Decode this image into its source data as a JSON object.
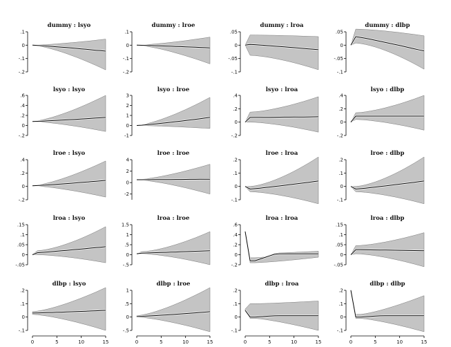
{
  "chart_data": [
    {
      "type": "area",
      "title": "dummy : lsyo",
      "ylim": [
        -0.2,
        0.1
      ],
      "yticks": [
        {
          "v": 0.1,
          "t": ".1"
        },
        {
          "v": 0,
          "t": "0"
        },
        {
          "v": -0.1,
          "t": "-.1"
        },
        {
          "v": -0.2,
          "t": "-.2"
        }
      ],
      "shape": "fan",
      "start": 0,
      "mid_end": -0.045,
      "band_peak": 0,
      "band_peak_lo": 0,
      "up_end": 0.045,
      "lo_end": -0.185
    },
    {
      "type": "area",
      "title": "dummy : lroe",
      "ylim": [
        -0.2,
        0.1
      ],
      "yticks": [
        {
          "v": 0.1,
          "t": ".1"
        },
        {
          "v": 0,
          "t": "0"
        },
        {
          "v": -0.1,
          "t": "-.1"
        },
        {
          "v": -0.2,
          "t": "-.2"
        }
      ],
      "shape": "fan",
      "start": 0,
      "mid_end": -0.02,
      "band_peak": 0,
      "band_peak_lo": 0,
      "up_end": 0.06,
      "lo_end": -0.14
    },
    {
      "type": "area",
      "title": "dummy : lroa",
      "ylim": [
        -0.1,
        0.05
      ],
      "yticks": [
        {
          "v": 0.05,
          "t": ".05"
        },
        {
          "v": 0,
          "t": "0"
        },
        {
          "v": -0.05,
          "t": "-.05"
        },
        {
          "v": -0.1,
          "t": "-.1"
        }
      ],
      "shape": "spike",
      "start": 0,
      "peak": 0.003,
      "mid_end": -0.017,
      "band_peak": 0.038,
      "band_peak_lo": -0.038,
      "up_end": 0.032,
      "lo_end": -0.092
    },
    {
      "type": "area",
      "title": "dummy : dlbp",
      "ylim": [
        -0.1,
        0.05
      ],
      "yticks": [
        {
          "v": 0.05,
          "t": ".05"
        },
        {
          "v": 0,
          "t": "0"
        },
        {
          "v": -0.05,
          "t": "-.05"
        },
        {
          "v": -0.1,
          "t": "-.1"
        }
      ],
      "shape": "spike",
      "start": 0,
      "peak": 0.032,
      "mid_end": -0.022,
      "band_peak": 0.06,
      "band_peak_lo": 0.008,
      "up_end": 0.035,
      "lo_end": -0.09
    },
    {
      "type": "area",
      "title": "lsyo : lsyo",
      "ylim": [
        -0.2,
        0.6
      ],
      "yticks": [
        {
          "v": 0.6,
          "t": ".6"
        },
        {
          "v": 0.4,
          "t": ".4"
        },
        {
          "v": 0.2,
          "t": ".2"
        },
        {
          "v": 0,
          "t": "0"
        },
        {
          "v": -0.2,
          "t": "-.2"
        }
      ],
      "shape": "fan",
      "start": 0.08,
      "mid_end": 0.16,
      "band_peak": 0.08,
      "band_peak_lo": 0.08,
      "up_end": 0.6,
      "lo_end": -0.12
    },
    {
      "type": "area",
      "title": "lsyo : lroe",
      "ylim": [
        -1,
        3
      ],
      "yticks": [
        {
          "v": 3,
          "t": "3"
        },
        {
          "v": 2,
          "t": "2"
        },
        {
          "v": 1,
          "t": "1"
        },
        {
          "v": 0,
          "t": "0"
        },
        {
          "v": -1,
          "t": "-1"
        }
      ],
      "shape": "fan",
      "start": 0,
      "mid_end": 0.8,
      "band_peak": 0,
      "band_peak_lo": 0,
      "up_end": 2.8,
      "lo_end": -0.3
    },
    {
      "type": "area",
      "title": "lsyo : lroa",
      "ylim": [
        -0.2,
        0.4
      ],
      "yticks": [
        {
          "v": 0.4,
          "t": ".4"
        },
        {
          "v": 0.2,
          "t": ".2"
        },
        {
          "v": 0,
          "t": "0"
        },
        {
          "v": -0.2,
          "t": "-.2"
        }
      ],
      "shape": "spike",
      "start": 0,
      "peak": 0.07,
      "mid_end": 0.08,
      "band_peak": 0.15,
      "band_peak_lo": 0.0,
      "up_end": 0.38,
      "lo_end": -0.15
    },
    {
      "type": "area",
      "title": "lsyo : dlbp",
      "ylim": [
        -0.2,
        0.4
      ],
      "yticks": [
        {
          "v": 0.4,
          "t": ".4"
        },
        {
          "v": 0.2,
          "t": ".2"
        },
        {
          "v": 0,
          "t": "0"
        },
        {
          "v": -0.2,
          "t": "-.2"
        }
      ],
      "shape": "spike",
      "start": 0,
      "peak": 0.09,
      "mid_end": 0.09,
      "band_peak": 0.14,
      "band_peak_lo": 0.04,
      "up_end": 0.4,
      "lo_end": -0.12
    },
    {
      "type": "area",
      "title": "lroe : lsyo",
      "ylim": [
        -0.2,
        0.4
      ],
      "yticks": [
        {
          "v": 0.4,
          "t": ".4"
        },
        {
          "v": 0.2,
          "t": ".2"
        },
        {
          "v": 0,
          "t": "0"
        },
        {
          "v": -0.2,
          "t": "-.2"
        }
      ],
      "shape": "fan",
      "start": 0.01,
      "mid_end": 0.09,
      "band_peak": 0.01,
      "band_peak_lo": 0.01,
      "up_end": 0.38,
      "lo_end": -0.16
    },
    {
      "type": "area",
      "title": "lroe : lroe",
      "ylim": [
        -3,
        4
      ],
      "yticks": [
        {
          "v": 4,
          "t": "4"
        },
        {
          "v": 2,
          "t": "2"
        },
        {
          "v": 0,
          "t": "0"
        },
        {
          "v": -2,
          "t": "-2"
        }
      ],
      "shape": "fan",
      "start": 0.5,
      "mid_end": 0.6,
      "band_peak": 0.5,
      "band_peak_lo": 0.5,
      "up_end": 3.2,
      "lo_end": -2.0
    },
    {
      "type": "area",
      "title": "lroe : lroa",
      "ylim": [
        -0.1,
        0.2
      ],
      "yticks": [
        {
          "v": 0.2,
          "t": ".2"
        },
        {
          "v": 0.1,
          "t": ".1"
        },
        {
          "v": 0,
          "t": "0"
        },
        {
          "v": -0.1,
          "t": "-.1"
        }
      ],
      "shape": "spike",
      "start": 0,
      "peak": -0.02,
      "mid_end": 0.04,
      "band_peak": 0.0,
      "band_peak_lo": -0.04,
      "up_end": 0.22,
      "lo_end": -0.13
    },
    {
      "type": "area",
      "title": "lroe : dlbp",
      "ylim": [
        -0.1,
        0.2
      ],
      "yticks": [
        {
          "v": 0.2,
          "t": ".2"
        },
        {
          "v": 0.1,
          "t": ".1"
        },
        {
          "v": 0,
          "t": "0"
        },
        {
          "v": -0.1,
          "t": "-.1"
        }
      ],
      "shape": "spike",
      "start": 0,
      "peak": -0.02,
      "mid_end": 0.04,
      "band_peak": 0.0,
      "band_peak_lo": -0.04,
      "up_end": 0.22,
      "lo_end": -0.13
    },
    {
      "type": "area",
      "title": "lroa : lsyo",
      "ylim": [
        -0.05,
        0.15
      ],
      "yticks": [
        {
          "v": 0.15,
          "t": ".15"
        },
        {
          "v": 0.1,
          "t": ".1"
        },
        {
          "v": 0.05,
          "t": ".05"
        },
        {
          "v": 0,
          "t": "0"
        },
        {
          "v": -0.05,
          "t": "-.05"
        }
      ],
      "shape": "spike",
      "start": 0,
      "peak": 0.01,
      "mid_end": 0.04,
      "band_peak": 0.02,
      "band_peak_lo": 0.0,
      "up_end": 0.14,
      "lo_end": -0.04
    },
    {
      "type": "area",
      "title": "lroa : lroe",
      "ylim": [
        -0.5,
        1.5
      ],
      "yticks": [
        {
          "v": 1.5,
          "t": "1.5"
        },
        {
          "v": 1,
          "t": "1"
        },
        {
          "v": 0.5,
          "t": ".5"
        },
        {
          "v": 0,
          "t": "0"
        },
        {
          "v": -0.5,
          "t": "-.5"
        }
      ],
      "shape": "spike",
      "start": 0.05,
      "peak": 0.08,
      "mid_end": 0.2,
      "band_peak": 0.15,
      "band_peak_lo": 0.05,
      "up_end": 1.15,
      "lo_end": -0.5
    },
    {
      "type": "area",
      "title": "lroa : lroa",
      "ylim": [
        -0.2,
        0.6
      ],
      "yticks": [
        {
          "v": 0.6,
          "t": ".6"
        },
        {
          "v": 0.4,
          "t": ".4"
        },
        {
          "v": 0.2,
          "t": ".2"
        },
        {
          "v": 0,
          "t": "0"
        },
        {
          "v": -0.2,
          "t": "-.2"
        }
      ],
      "shape": "decay",
      "start": 0.46,
      "peak": -0.12,
      "mid_end": 0.02,
      "band_peak": -0.06,
      "band_peak_lo": -0.16,
      "up_end": 0.07,
      "lo_end": -0.05
    },
    {
      "type": "area",
      "title": "lroa : dlbp",
      "ylim": [
        -0.05,
        0.15
      ],
      "yticks": [
        {
          "v": 0.15,
          "t": ".15"
        },
        {
          "v": 0.1,
          "t": ".1"
        },
        {
          "v": 0.05,
          "t": ".05"
        },
        {
          "v": 0,
          "t": "0"
        },
        {
          "v": -0.05,
          "t": "-.05"
        }
      ],
      "shape": "spike",
      "start": 0,
      "peak": 0.025,
      "mid_end": 0.02,
      "band_peak": 0.045,
      "band_peak_lo": 0.005,
      "up_end": 0.11,
      "lo_end": -0.06
    },
    {
      "type": "area",
      "title": "dlbp : lsyo",
      "ylim": [
        -0.1,
        0.2
      ],
      "yticks": [
        {
          "v": 0.2,
          "t": ".2"
        },
        {
          "v": 0.1,
          "t": ".1"
        },
        {
          "v": 0,
          "t": "0"
        },
        {
          "v": -0.1,
          "t": "-.1"
        }
      ],
      "shape": "fan",
      "start": 0.03,
      "mid_end": 0.05,
      "band_peak": 0.04,
      "band_peak_lo": 0.02,
      "up_end": 0.22,
      "lo_end": -0.1
    },
    {
      "type": "area",
      "title": "dlbp : lroe",
      "ylim": [
        -0.5,
        1.0
      ],
      "yticks": [
        {
          "v": 1,
          "t": "1"
        },
        {
          "v": 0.5,
          "t": ".5"
        },
        {
          "v": 0,
          "t": "0"
        },
        {
          "v": -0.5,
          "t": "-.5"
        }
      ],
      "shape": "fan",
      "start": 0.02,
      "mid_end": 0.2,
      "band_peak": 0.05,
      "band_peak_lo": 0.0,
      "up_end": 1.1,
      "lo_end": -0.55
    },
    {
      "type": "area",
      "title": "dlbp : lroa",
      "ylim": [
        -0.1,
        0.2
      ],
      "yticks": [
        {
          "v": 0.2,
          "t": ".2"
        },
        {
          "v": 0.1,
          "t": ".1"
        },
        {
          "v": 0,
          "t": "0"
        },
        {
          "v": -0.1,
          "t": "-.1"
        }
      ],
      "shape": "decay",
      "start": 0.05,
      "peak": 0.0,
      "mid_end": 0.01,
      "band_peak": 0.1,
      "band_peak_lo": -0.01,
      "up_end": 0.12,
      "lo_end": -0.1
    },
    {
      "type": "area",
      "title": "dlbp : dlbp",
      "ylim": [
        -0.1,
        0.2
      ],
      "yticks": [
        {
          "v": 0.2,
          "t": ".2"
        },
        {
          "v": 0.1,
          "t": ".1"
        },
        {
          "v": 0,
          "t": "0"
        },
        {
          "v": -0.1,
          "t": "-.1"
        }
      ],
      "shape": "decay",
      "start": 0.2,
      "peak": 0.0,
      "mid_end": 0.01,
      "band_peak": 0.02,
      "band_peak_lo": -0.01,
      "up_end": 0.16,
      "lo_end": -0.11
    }
  ],
  "xaxis": {
    "min": 0,
    "max": 15,
    "ticks": [
      {
        "v": 0,
        "t": "0"
      },
      {
        "v": 5,
        "t": "5"
      },
      {
        "v": 10,
        "t": "10"
      },
      {
        "v": 15,
        "t": "15"
      }
    ]
  }
}
